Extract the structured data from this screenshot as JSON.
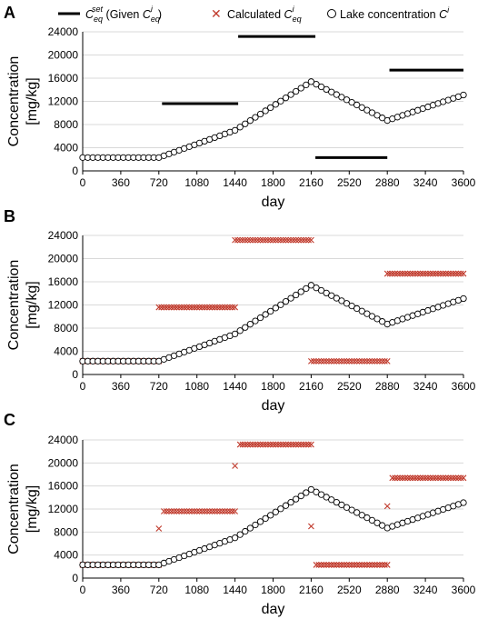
{
  "legend": {
    "given_prefix": "C",
    "given_sub": "eq",
    "given_sup": "set",
    "given_mid": " (Given  ",
    "given_c": "C",
    "given_c_sub": "eq",
    "given_c_sup": "i",
    "given_close": ")",
    "calc_label": "Calculated  ",
    "calc_c": "C",
    "calc_c_sub": "eq",
    "calc_c_sup": "i",
    "lake_label": "Lake concentration ",
    "lake_c": "C",
    "lake_c_sup": "i"
  },
  "colors": {
    "given": "#000000",
    "calculated": "#c0392b",
    "lake": "#000000",
    "grid": "#d9d9d9"
  },
  "chart_data": [
    {
      "panel": "A",
      "type": "line",
      "xlabel": "day",
      "ylabel_line1": "Concentration",
      "ylabel_line2": "[mg/kg]",
      "xlim": [
        0,
        3600
      ],
      "ylim": [
        0,
        24000
      ],
      "xticks": [
        "0",
        "360",
        "720",
        "1080",
        "1440",
        "1800",
        "2160",
        "2520",
        "2880",
        "3240",
        "3600"
      ],
      "yticks": [
        "0",
        "4000",
        "8000",
        "12000",
        "16000",
        "20000",
        "24000"
      ],
      "grid": "horizontal",
      "legend_position": "top",
      "given_segments": [
        {
          "x": [
            0,
            720
          ],
          "y": 2300
        },
        {
          "x": [
            750,
            1470
          ],
          "y": 11600
        },
        {
          "x": [
            1470,
            2200
          ],
          "y": 23200
        },
        {
          "x": [
            2200,
            2880
          ],
          "y": 2300
        },
        {
          "x": [
            2900,
            3600
          ],
          "y": 17400
        }
      ],
      "calculated": [],
      "lake_nodes": [
        [
          0,
          2300
        ],
        [
          720,
          2300
        ],
        [
          1440,
          7000
        ],
        [
          2160,
          15400
        ],
        [
          2880,
          8700
        ],
        [
          3600,
          13100
        ]
      ]
    },
    {
      "panel": "B",
      "type": "line",
      "xlabel": "day",
      "ylabel_line1": "Concentration",
      "ylabel_line2": "[mg/kg]",
      "xlim": [
        0,
        3600
      ],
      "ylim": [
        0,
        24000
      ],
      "xticks": [
        "0",
        "360",
        "720",
        "1080",
        "1440",
        "1800",
        "2160",
        "2520",
        "2880",
        "3240",
        "3600"
      ],
      "yticks": [
        "0",
        "4000",
        "8000",
        "12000",
        "16000",
        "20000",
        "24000"
      ],
      "grid": "horizontal",
      "given_segments": [],
      "calculated": [
        {
          "x": [
            0,
            720
          ],
          "y": 2300
        },
        {
          "x": [
            720,
            1440
          ],
          "y": 11600
        },
        {
          "x": [
            1440,
            2160
          ],
          "y": 23200
        },
        {
          "x": [
            2160,
            2880
          ],
          "y": 2300
        },
        {
          "x": [
            2880,
            3600
          ],
          "y": 17400
        }
      ],
      "calculated_outliers": [],
      "lake_nodes": [
        [
          0,
          2300
        ],
        [
          720,
          2300
        ],
        [
          1440,
          7000
        ],
        [
          2160,
          15400
        ],
        [
          2880,
          8700
        ],
        [
          3600,
          13100
        ]
      ]
    },
    {
      "panel": "C",
      "type": "line",
      "xlabel": "day",
      "ylabel_line1": "Concentration",
      "ylabel_line2": "[mg/kg]",
      "xlim": [
        0,
        3600
      ],
      "ylim": [
        0,
        24000
      ],
      "xticks": [
        "0",
        "360",
        "720",
        "1080",
        "1440",
        "1800",
        "2160",
        "2520",
        "2880",
        "3240",
        "3600"
      ],
      "yticks": [
        "0",
        "4000",
        "8000",
        "12000",
        "16000",
        "20000",
        "24000"
      ],
      "grid": "horizontal",
      "given_segments": [],
      "calculated": [
        {
          "x": [
            0,
            720
          ],
          "y": 2300
        },
        {
          "x": [
            768,
            1440
          ],
          "y": 11600
        },
        {
          "x": [
            1488,
            2160
          ],
          "y": 23200
        },
        {
          "x": [
            2208,
            2880
          ],
          "y": 2300
        },
        {
          "x": [
            2928,
            3600
          ],
          "y": 17400
        }
      ],
      "calculated_outliers": [
        [
          720,
          8600
        ],
        [
          1440,
          19500
        ],
        [
          2160,
          9000
        ],
        [
          2880,
          12500
        ]
      ],
      "lake_nodes": [
        [
          0,
          2300
        ],
        [
          720,
          2300
        ],
        [
          1440,
          7000
        ],
        [
          2160,
          15400
        ],
        [
          2880,
          8700
        ],
        [
          3600,
          13100
        ]
      ]
    }
  ]
}
